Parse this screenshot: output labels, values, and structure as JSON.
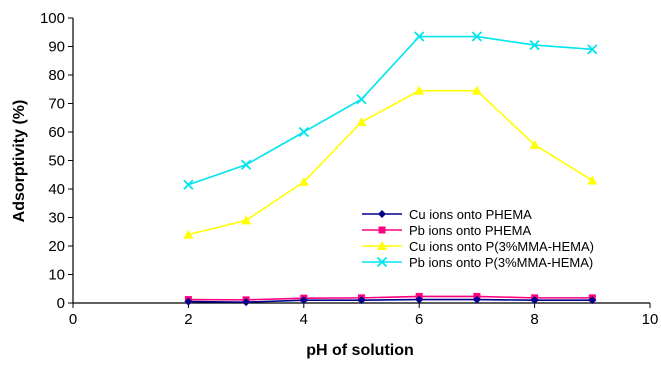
{
  "chart_data": {
    "type": "line",
    "xlabel": "pH of solution",
    "ylabel": "Adsorptivity (%)",
    "xlim": [
      0,
      10
    ],
    "ylim": [
      0,
      100
    ],
    "xticks": [
      0,
      2,
      4,
      6,
      8,
      10
    ],
    "yticks": [
      0,
      10,
      20,
      30,
      40,
      50,
      60,
      70,
      80,
      90,
      100
    ],
    "grid": false,
    "legend_position": "bottom-right",
    "series": [
      {
        "name": "Cu ions onto PHEMA",
        "color": "#00008b",
        "marker": "diamond",
        "points": [
          [
            2,
            0.5
          ],
          [
            3,
            0.3
          ],
          [
            4,
            1.0
          ],
          [
            5,
            1.0
          ],
          [
            6,
            1.2
          ],
          [
            7,
            1.2
          ],
          [
            8,
            1.0
          ],
          [
            9,
            1.0
          ]
        ]
      },
      {
        "name": "Pb ions onto PHEMA",
        "color": "#ff007f",
        "marker": "square",
        "points": [
          [
            2,
            1.2
          ],
          [
            3,
            1.1
          ],
          [
            4,
            1.7
          ],
          [
            5,
            1.8
          ],
          [
            6,
            2.3
          ],
          [
            7,
            2.3
          ],
          [
            8,
            1.8
          ],
          [
            9,
            1.8
          ]
        ]
      },
      {
        "name": "Cu ions onto P(3%MMA-HEMA)",
        "color": "#ffff00",
        "marker": "triangle",
        "points": [
          [
            2,
            24
          ],
          [
            3,
            29
          ],
          [
            4,
            42.5
          ],
          [
            5,
            63.5
          ],
          [
            6,
            74.5
          ],
          [
            7,
            74.5
          ],
          [
            8,
            55.5
          ],
          [
            9,
            43
          ]
        ]
      },
      {
        "name": "Pb ions onto P(3%MMA-HEMA)",
        "color": "#00e5ee",
        "marker": "x",
        "points": [
          [
            2,
            41.5
          ],
          [
            3,
            48.5
          ],
          [
            4,
            60
          ],
          [
            5,
            71.5
          ],
          [
            6,
            93.5
          ],
          [
            7,
            93.5
          ],
          [
            8,
            90.5
          ],
          [
            9,
            89
          ]
        ]
      }
    ]
  }
}
